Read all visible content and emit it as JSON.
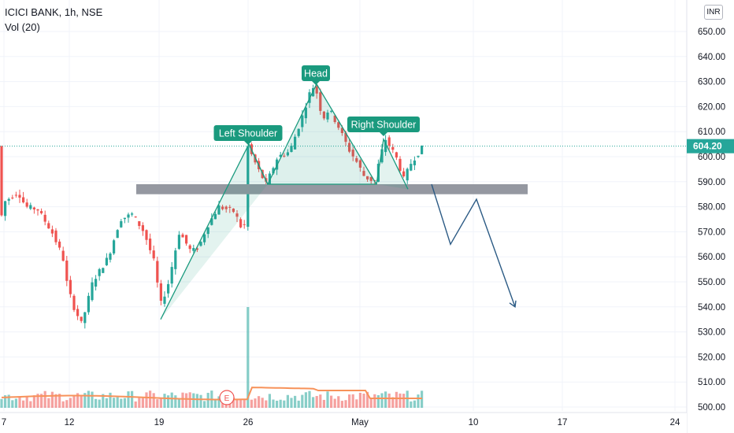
{
  "legend": {
    "symbol_line": "ICICI BANK, 1h, NSE",
    "volume_line": "Vol (20)"
  },
  "currency": "INR",
  "last_price_label": "604.20",
  "colors": {
    "up": "#26a69a",
    "down": "#ef5350",
    "annotation_green": "#1a9a7e",
    "neckline": "#9598a1",
    "arrow": "#2b5a84",
    "volume_ma": "#f7925a"
  },
  "annotations": {
    "head": "Head",
    "left_shoulder": "Left Shoulder",
    "right_shoulder": "Right Shoulder",
    "earnings_marker": "E"
  },
  "chart_data": {
    "type": "candlestick",
    "title": "ICICI BANK, 1h, NSE",
    "ylim": [
      498,
      660
    ],
    "y_ticks": [
      500,
      510,
      520,
      530,
      540,
      550,
      560,
      570,
      580,
      590,
      600,
      610,
      620,
      630,
      640,
      650
    ],
    "x_tick_labels": [
      "7",
      "12",
      "19",
      "26",
      "May",
      "10",
      "17",
      "24"
    ],
    "last_price": 604.2,
    "pattern": {
      "name": "Head and Shoulders",
      "left_shoulder": 605,
      "head": 629,
      "right_shoulder": 607,
      "neckline_zone": [
        585,
        589
      ],
      "projected_path": [
        589,
        565,
        583,
        540
      ]
    },
    "price_path": [
      [
        0,
        570
      ],
      [
        8,
        582
      ],
      [
        25,
        586
      ],
      [
        35,
        580
      ],
      [
        50,
        579
      ],
      [
        68,
        570
      ],
      [
        82,
        560
      ],
      [
        88,
        548
      ],
      [
        96,
        540
      ],
      [
        106,
        533
      ],
      [
        120,
        550
      ],
      [
        140,
        560
      ],
      [
        155,
        575
      ],
      [
        170,
        577
      ],
      [
        185,
        570
      ],
      [
        200,
        556
      ],
      [
        205,
        540
      ],
      [
        215,
        548
      ],
      [
        230,
        570
      ],
      [
        245,
        562
      ],
      [
        255,
        564
      ],
      [
        265,
        572
      ],
      [
        280,
        580
      ],
      [
        300,
        578
      ],
      [
        312,
        569
      ],
      [
        317,
        604
      ],
      [
        330,
        595
      ],
      [
        340,
        589
      ],
      [
        355,
        600
      ],
      [
        370,
        602
      ],
      [
        385,
        615
      ],
      [
        395,
        625
      ],
      [
        402,
        629
      ],
      [
        412,
        615
      ],
      [
        420,
        619
      ],
      [
        432,
        612
      ],
      [
        445,
        603
      ],
      [
        455,
        598
      ],
      [
        465,
        592
      ],
      [
        478,
        590
      ],
      [
        485,
        600
      ],
      [
        492,
        607
      ],
      [
        505,
        600
      ],
      [
        515,
        591
      ],
      [
        525,
        598
      ],
      [
        540,
        604.2
      ]
    ],
    "volume_axis_note": "volume bars shown without values"
  }
}
